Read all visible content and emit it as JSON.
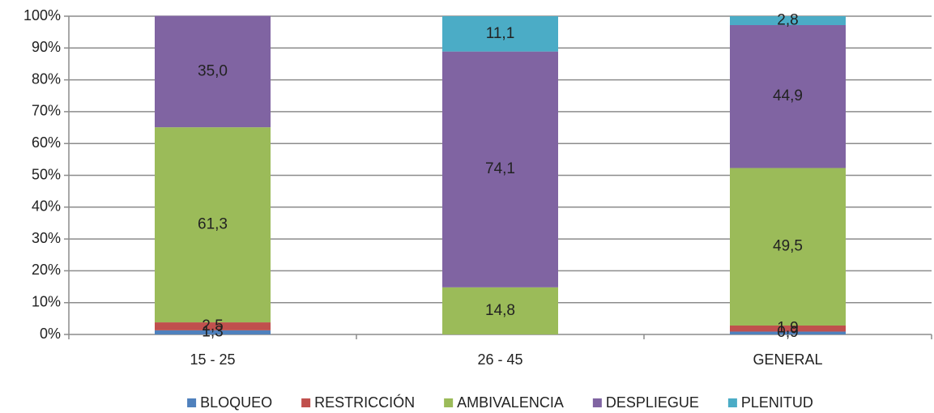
{
  "chart_data": {
    "type": "stacked_bar",
    "categories": [
      "15 - 25",
      "26 - 45",
      "GENERAL"
    ],
    "series": [
      {
        "name": "BLOQUEO",
        "color": "#4f81bd",
        "values": [
          1.3,
          null,
          0.9
        ],
        "value_labels": [
          "1,3",
          null,
          "0,9"
        ]
      },
      {
        "name": "RESTRICCIÓN",
        "color": "#c0504d",
        "values": [
          2.5,
          null,
          1.9
        ],
        "value_labels": [
          "2,5",
          null,
          "1,9"
        ]
      },
      {
        "name": "AMBIVALENCIA",
        "color": "#9bbb59",
        "values": [
          61.3,
          14.8,
          49.5
        ],
        "value_labels": [
          "61,3",
          "14,8",
          "49,5"
        ]
      },
      {
        "name": "DESPLIEGUE",
        "color": "#8064a2",
        "values": [
          35.0,
          74.1,
          44.9
        ],
        "value_labels": [
          "35,0",
          "74,1",
          "44,9"
        ]
      },
      {
        "name": "PLENITUD",
        "color": "#4bacc6",
        "values": [
          null,
          11.1,
          2.8
        ],
        "value_labels": [
          null,
          "11,1",
          "2,8"
        ]
      }
    ],
    "ylim": [
      0,
      100
    ],
    "yticks": [
      {
        "value": 0,
        "label": "0%"
      },
      {
        "value": 10,
        "label": "10%"
      },
      {
        "value": 20,
        "label": "20%"
      },
      {
        "value": 30,
        "label": "30%"
      },
      {
        "value": 40,
        "label": "40%"
      },
      {
        "value": 50,
        "label": "50%"
      },
      {
        "value": 60,
        "label": "60%"
      },
      {
        "value": 70,
        "label": "70%"
      },
      {
        "value": 80,
        "label": "80%"
      },
      {
        "value": 90,
        "label": "90%"
      },
      {
        "value": 100,
        "label": "100%"
      }
    ],
    "grid": true,
    "legend": "bottom"
  }
}
